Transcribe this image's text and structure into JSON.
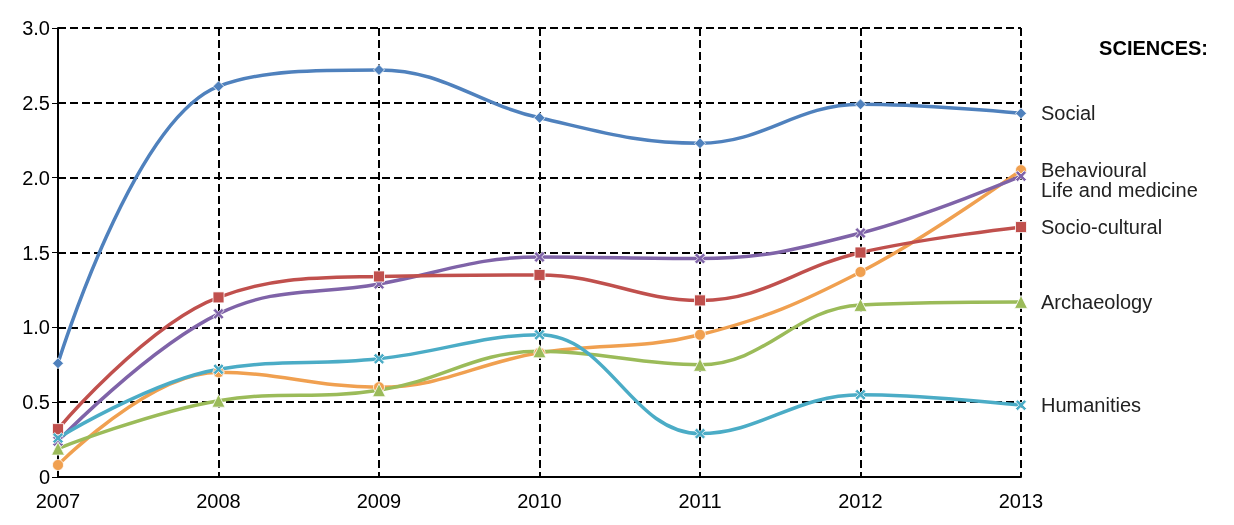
{
  "chart_data": {
    "type": "line",
    "legend_title": "SCIENCES:",
    "categories": [
      "2007",
      "2008",
      "2009",
      "2010",
      "2011",
      "2012",
      "2013"
    ],
    "ylim": [
      0,
      3
    ],
    "yticks": [
      0,
      0.5,
      {
        "value": 1,
        "label": "1.0"
      },
      1.5,
      {
        "value": 2,
        "label": "2.0"
      },
      2.5,
      {
        "value": 3,
        "label": "3.0"
      }
    ],
    "grid": true,
    "line_style": "solid",
    "series": [
      {
        "name": "Social",
        "color": "#4f81bd",
        "marker": "diamond",
        "values": [
          0.76,
          2.61,
          2.72,
          2.4,
          2.23,
          2.49,
          2.43
        ]
      },
      {
        "name": "Behavioural",
        "color": "#f0a050",
        "marker": "circle",
        "values": [
          0.08,
          0.7,
          0.6,
          0.83,
          0.95,
          1.37,
          2.05
        ]
      },
      {
        "name": "Life and medicine",
        "color": "#7f63a8",
        "marker": "cross",
        "values": [
          0.24,
          1.09,
          1.29,
          1.47,
          1.46,
          1.63,
          2.01
        ]
      },
      {
        "name": "Socio-cultural",
        "color": "#c0504d",
        "marker": "square",
        "values": [
          0.32,
          1.2,
          1.34,
          1.35,
          1.18,
          1.5,
          1.67
        ]
      },
      {
        "name": "Archaeology",
        "color": "#9bbb59",
        "marker": "triangle",
        "values": [
          0.19,
          0.51,
          0.58,
          0.84,
          0.75,
          1.15,
          1.17
        ]
      },
      {
        "name": "Humanities",
        "color": "#4bacc6",
        "marker": "cross",
        "values": [
          0.26,
          0.72,
          0.79,
          0.95,
          0.29,
          0.55,
          0.48
        ]
      }
    ]
  }
}
